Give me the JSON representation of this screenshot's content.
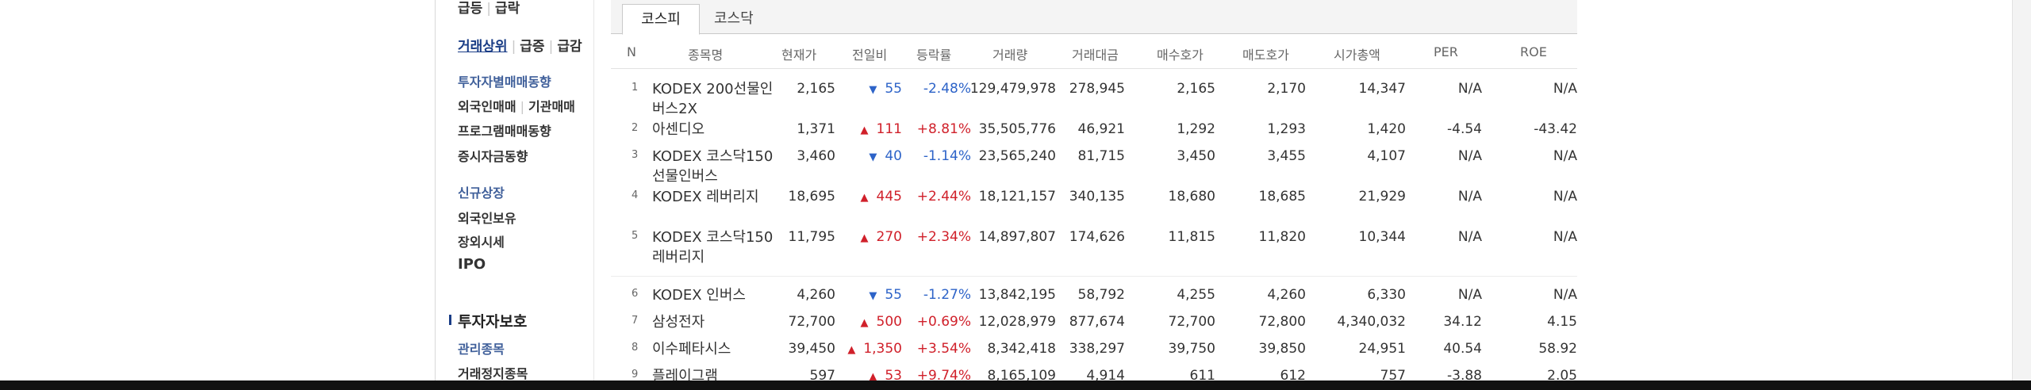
{
  "sidebar": {
    "top_group": [
      "급등",
      "급락"
    ],
    "top_group_sep": "|",
    "trade_group": [
      "거래상위",
      "급증",
      "급감"
    ],
    "investor_trend": "투자자별매매동향",
    "foreign_inst": [
      "외국인매매",
      "기관매매"
    ],
    "program_trend": "프로그램매매동향",
    "deposit_trend": "증시자금동향",
    "new_listing": "신규상장",
    "foreign_holding": "외국인보유",
    "otc_price": "장외시세",
    "ipo": "IPO",
    "section_title": "투자자보호",
    "managed_stocks": "관리종목",
    "halted_stocks": "거래정지종목"
  },
  "tabs": {
    "kospi": "코스피",
    "kosdaq": "코스닥"
  },
  "headers": {
    "n": "N",
    "name": "종목명",
    "price": "현재가",
    "change": "전일비",
    "rate": "등락률",
    "volume": "거래량",
    "amount": "거래대금",
    "bid": "매수호가",
    "ask": "매도호가",
    "mcap": "시가총액",
    "per": "PER",
    "roe": "ROE"
  },
  "rows": [
    {
      "n": "1",
      "name": "KODEX 200선물인버스2X",
      "price": "2,165",
      "dir": "down",
      "arrow": "▼",
      "change": "55",
      "rate": "-2.48%",
      "volume": "129,479,978",
      "amount": "278,945",
      "bid": "2,165",
      "ask": "2,170",
      "mcap": "14,347",
      "per": "N/A",
      "roe": "N/A"
    },
    {
      "n": "2",
      "name": "아센디오",
      "price": "1,371",
      "dir": "up",
      "arrow": "▲",
      "change": "111",
      "rate": "+8.81%",
      "volume": "35,505,776",
      "amount": "46,921",
      "bid": "1,292",
      "ask": "1,293",
      "mcap": "1,420",
      "per": "-4.54",
      "roe": "-43.42"
    },
    {
      "n": "3",
      "name": "KODEX 코스닥150선물인버스",
      "price": "3,460",
      "dir": "down",
      "arrow": "▼",
      "change": "40",
      "rate": "-1.14%",
      "volume": "23,565,240",
      "amount": "81,715",
      "bid": "3,450",
      "ask": "3,455",
      "mcap": "4,107",
      "per": "N/A",
      "roe": "N/A"
    },
    {
      "n": "4",
      "name": "KODEX 레버리지",
      "price": "18,695",
      "dir": "up",
      "arrow": "▲",
      "change": "445",
      "rate": "+2.44%",
      "volume": "18,121,157",
      "amount": "340,135",
      "bid": "18,680",
      "ask": "18,685",
      "mcap": "21,929",
      "per": "N/A",
      "roe": "N/A"
    },
    {
      "n": "5",
      "name": "KODEX 코스닥150레버리지",
      "price": "11,795",
      "dir": "up",
      "arrow": "▲",
      "change": "270",
      "rate": "+2.34%",
      "volume": "14,897,807",
      "amount": "174,626",
      "bid": "11,815",
      "ask": "11,820",
      "mcap": "10,344",
      "per": "N/A",
      "roe": "N/A"
    },
    {
      "n": "6",
      "name": "KODEX 인버스",
      "price": "4,260",
      "dir": "down",
      "arrow": "▼",
      "change": "55",
      "rate": "-1.27%",
      "volume": "13,842,195",
      "amount": "58,792",
      "bid": "4,255",
      "ask": "4,260",
      "mcap": "6,330",
      "per": "N/A",
      "roe": "N/A"
    },
    {
      "n": "7",
      "name": "삼성전자",
      "price": "72,700",
      "dir": "up",
      "arrow": "▲",
      "change": "500",
      "rate": "+0.69%",
      "volume": "12,028,979",
      "amount": "877,674",
      "bid": "72,700",
      "ask": "72,800",
      "mcap": "4,340,032",
      "per": "34.12",
      "roe": "4.15"
    },
    {
      "n": "8",
      "name": "이수페타시스",
      "price": "39,450",
      "dir": "up",
      "arrow": "▲",
      "change": "1,350",
      "rate": "+3.54%",
      "volume": "8,342,418",
      "amount": "338,297",
      "bid": "39,750",
      "ask": "39,850",
      "mcap": "24,951",
      "per": "40.54",
      "roe": "58.92"
    },
    {
      "n": "9",
      "name": "플레이그램",
      "price": "597",
      "dir": "up",
      "arrow": "▲",
      "change": "53",
      "rate": "+9.74%",
      "volume": "8,165,109",
      "amount": "4,914",
      "bid": "611",
      "ask": "612",
      "mcap": "757",
      "per": "-3.88",
      "roe": "2.05"
    }
  ],
  "colors": {
    "up": "#d0202a",
    "down": "#2d63c8",
    "link": "#1a3d86"
  }
}
